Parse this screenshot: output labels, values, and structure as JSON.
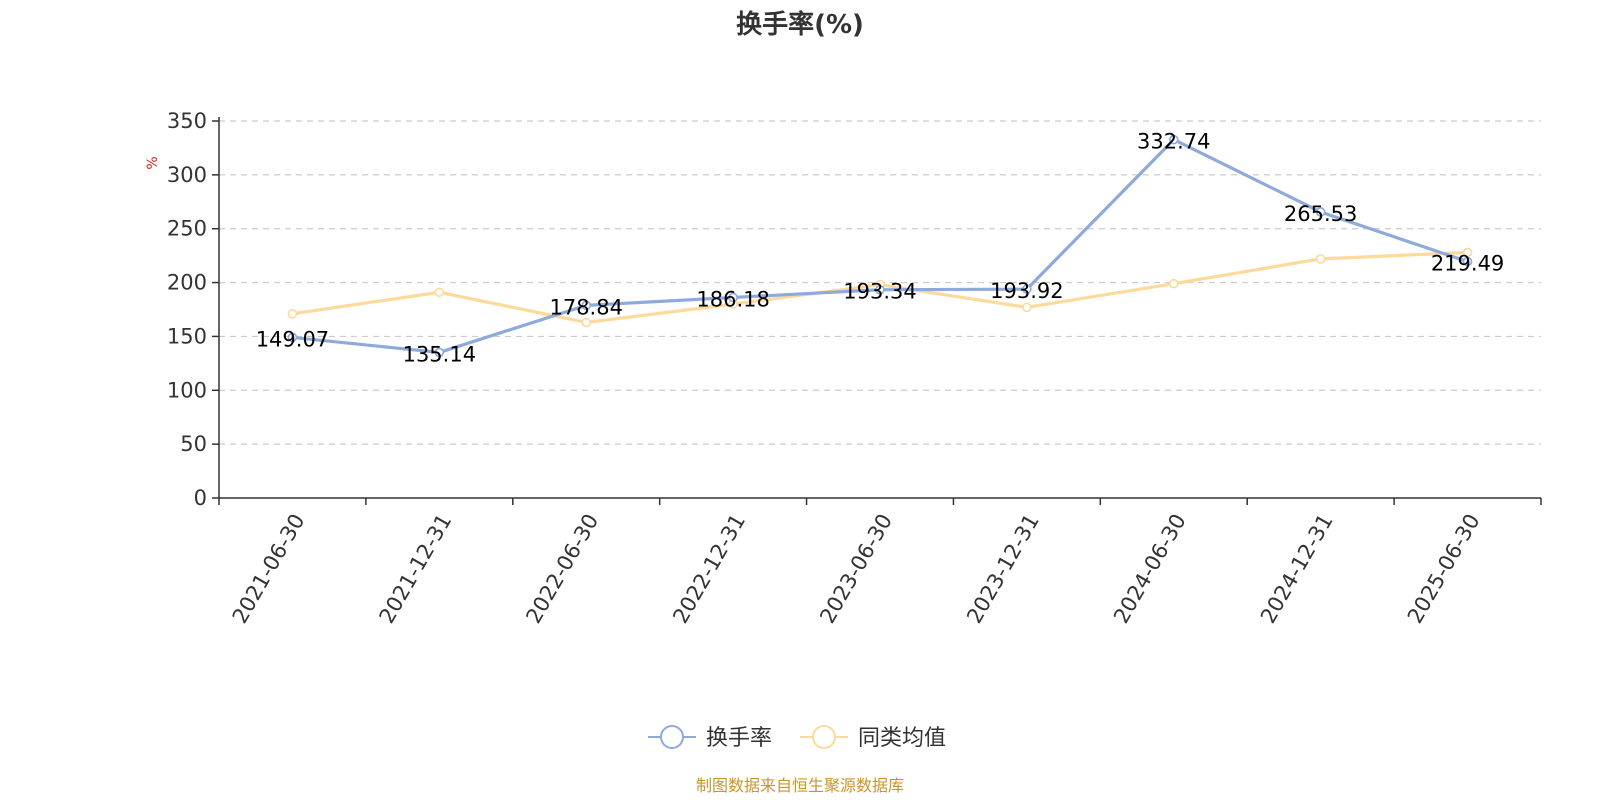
{
  "chart_data": {
    "type": "line",
    "title": "换手率(%)",
    "ylabel": "%",
    "xlabel": "",
    "categories": [
      "2021-06-30",
      "2021-12-31",
      "2022-06-30",
      "2022-12-31",
      "2023-06-30",
      "2023-12-31",
      "2024-06-30",
      "2024-12-31",
      "2025-06-30"
    ],
    "ylim": [
      0,
      350
    ],
    "yticks": [
      0,
      50,
      100,
      150,
      200,
      250,
      300,
      350
    ],
    "grid": true,
    "legend_position": "bottom-center",
    "series": [
      {
        "name": "换手率",
        "color": "#8eaadb",
        "values": [
          149.07,
          135.14,
          178.84,
          186.18,
          193.34,
          193.92,
          332.74,
          265.53,
          219.49
        ],
        "labels": [
          "149.07",
          "135.14",
          "178.84",
          "186.18",
          "193.34",
          "193.92",
          "332.74",
          "265.53",
          "219.49"
        ]
      },
      {
        "name": "同类均值",
        "color": "#fdd99b",
        "values": [
          171,
          191,
          163,
          180,
          198,
          177,
          199,
          222,
          228
        ]
      }
    ]
  },
  "source": "制图数据来自恒生聚源数据库"
}
